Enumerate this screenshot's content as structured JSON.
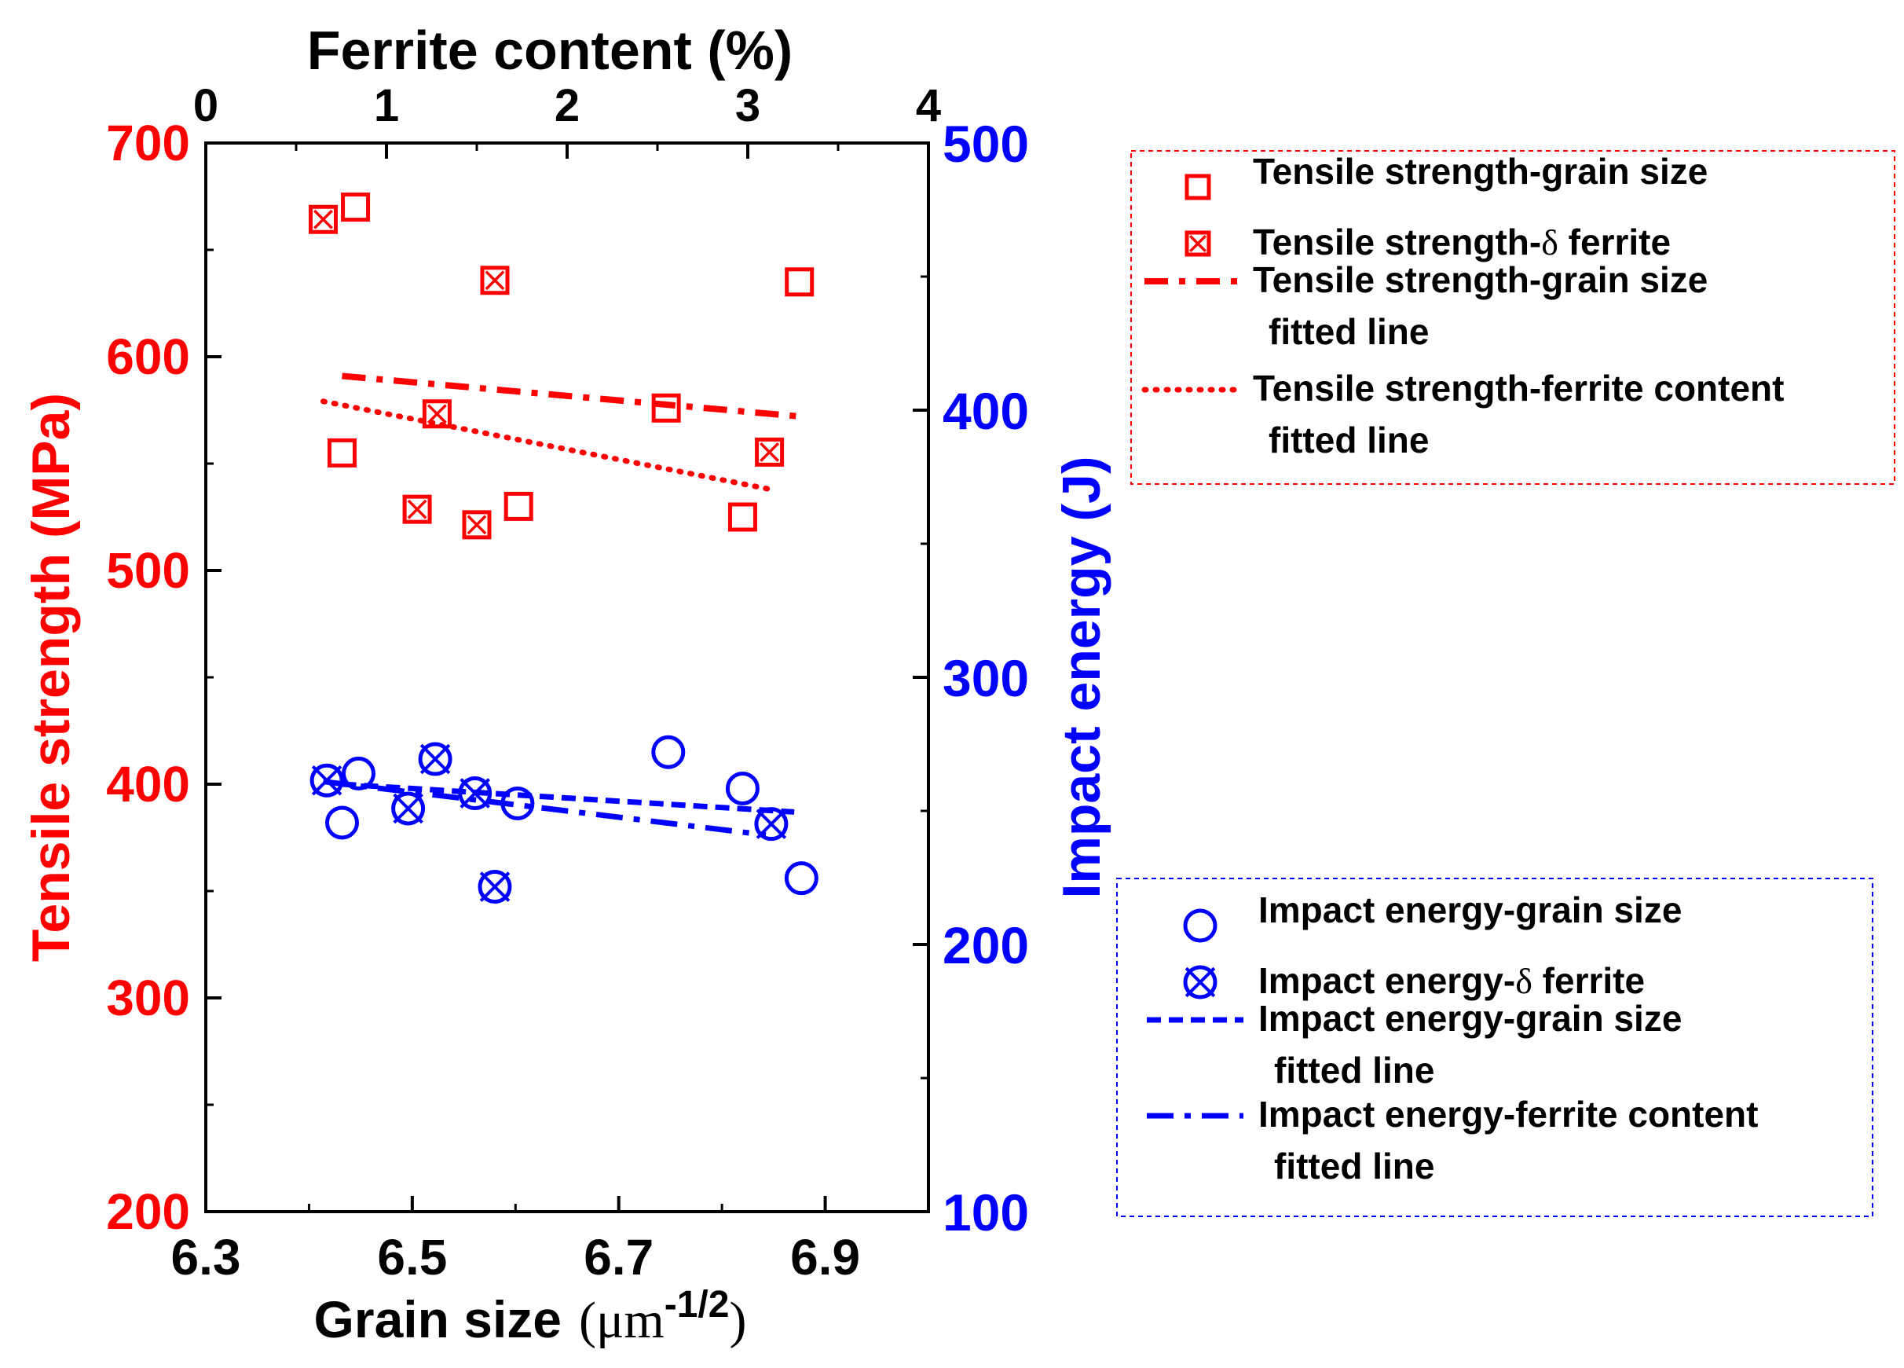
{
  "chart_data": {
    "type": "scatter",
    "colors": {
      "tensile": "#ff0000",
      "impact": "#0000ff",
      "axis": "#000000"
    },
    "axes": {
      "x_bottom": {
        "label": "Grain size",
        "unit_prefix": "μm",
        "unit_sup": "-1/2",
        "min": 6.3,
        "max": 7.0,
        "ticks": [
          6.3,
          6.5,
          6.7,
          6.9
        ],
        "tick_labels": [
          "6.3",
          "6.5",
          "6.7",
          "6.9"
        ]
      },
      "x_top": {
        "label": "Ferrite content (%)",
        "min": 0,
        "max": 4,
        "ticks": [
          0,
          1,
          2,
          3,
          4
        ],
        "tick_labels": [
          "0",
          "1",
          "2",
          "3",
          "4"
        ]
      },
      "y_left": {
        "label": "Tensile strength (MPa)",
        "min": 200,
        "max": 700,
        "ticks": [
          200,
          300,
          400,
          500,
          600,
          700
        ],
        "tick_labels": [
          "200",
          "300",
          "400",
          "500",
          "600",
          "700"
        ]
      },
      "y_right": {
        "label": "Impact energy (J)",
        "min": 100,
        "max": 500,
        "ticks": [
          100,
          200,
          300,
          400,
          500
        ],
        "tick_labels": [
          "100",
          "200",
          "300",
          "400",
          "500"
        ]
      }
    },
    "series": [
      {
        "name": "Tensile strength-grain size",
        "marker": "square",
        "color": "#ff0000",
        "x_axis": "bottom",
        "y_axis": "left",
        "points": [
          [
            6.445,
            670
          ],
          [
            6.432,
            555
          ],
          [
            6.603,
            530
          ],
          [
            6.746,
            576
          ],
          [
            6.82,
            525
          ],
          [
            6.875,
            635
          ]
        ]
      },
      {
        "name": "Tensile strength-δ ferrite",
        "marker": "square-x",
        "color": "#ff0000",
        "x_axis": "top",
        "y_axis": "right",
        "points": [
          [
            0.65,
            471.4
          ],
          [
            1.6,
            448.6
          ],
          [
            1.28,
            398.6
          ],
          [
            1.17,
            362.9
          ],
          [
            1.5,
            357.1
          ],
          [
            3.12,
            384.3
          ]
        ]
      },
      {
        "name": "Impact energy-grain size",
        "marker": "circle",
        "color": "#0000ff",
        "x_axis": "bottom",
        "y_axis": "left",
        "points": [
          [
            6.448,
            405
          ],
          [
            6.432,
            382
          ],
          [
            6.602,
            391
          ],
          [
            6.748,
            415
          ],
          [
            6.82,
            398
          ],
          [
            6.877,
            356
          ]
        ]
      },
      {
        "name": "Impact energy-δ ferrite",
        "marker": "circle-x",
        "color": "#0000ff",
        "x_axis": "top",
        "y_axis": "right",
        "points": [
          [
            0.67,
            261.4
          ],
          [
            1.12,
            250.9
          ],
          [
            1.27,
            269.4
          ],
          [
            1.49,
            256.6
          ],
          [
            1.6,
            221.6
          ],
          [
            3.13,
            245.1
          ]
        ]
      }
    ],
    "fits": [
      {
        "name": "Tensile strength-grain size fitted line",
        "style": "dash-dot",
        "color": "#ff0000",
        "x_axis": "bottom",
        "y_axis": "left",
        "from": [
          6.432,
          591
        ],
        "to": [
          6.877,
          572
        ]
      },
      {
        "name": "Tensile strength-ferrite content fitted line",
        "style": "dotted",
        "color": "#ff0000",
        "x_axis": "top",
        "y_axis": "right",
        "from": [
          0.65,
          403.3
        ],
        "to": [
          3.13,
          370.3
        ]
      },
      {
        "name": "Impact energy-grain size fitted line",
        "style": "short-dash",
        "color": "#0000ff",
        "x_axis": "bottom",
        "y_axis": "left",
        "from": [
          6.432,
          400
        ],
        "to": [
          6.87,
          387
        ]
      },
      {
        "name": "Impact energy-ferrite content fitted line",
        "style": "long-dash-dot",
        "color": "#0000ff",
        "x_axis": "top",
        "y_axis": "right",
        "from": [
          0.65,
          261
        ],
        "to": [
          3.1,
          241
        ]
      }
    ],
    "legends": [
      {
        "group": "tensile",
        "placement": "top-right",
        "entries": [
          {
            "symbol": "square",
            "lines": [
              "Tensile strength-grain size"
            ]
          },
          {
            "symbol": "square-x",
            "lines": [
              "Tensile strength-",
              "δ",
              " ferrite"
            ]
          },
          {
            "symbol": "dash-dot",
            "lines": [
              "Tensile strength-grain size",
              "fitted line"
            ]
          },
          {
            "symbol": "dotted",
            "lines": [
              "Tensile strength-ferrite content",
              "fitted line"
            ]
          }
        ]
      },
      {
        "group": "impact",
        "placement": "bottom-right",
        "entries": [
          {
            "symbol": "circle",
            "lines": [
              "Impact energy-grain size"
            ]
          },
          {
            "symbol": "circle-x",
            "lines": [
              "Impact energy-",
              "δ",
              " ferrite"
            ]
          },
          {
            "symbol": "short-dash",
            "lines": [
              "Impact energy-grain size",
              "fitted line"
            ]
          },
          {
            "symbol": "long-dash-dot",
            "lines": [
              "Impact energy-ferrite content",
              "fitted line"
            ]
          }
        ]
      }
    ]
  }
}
